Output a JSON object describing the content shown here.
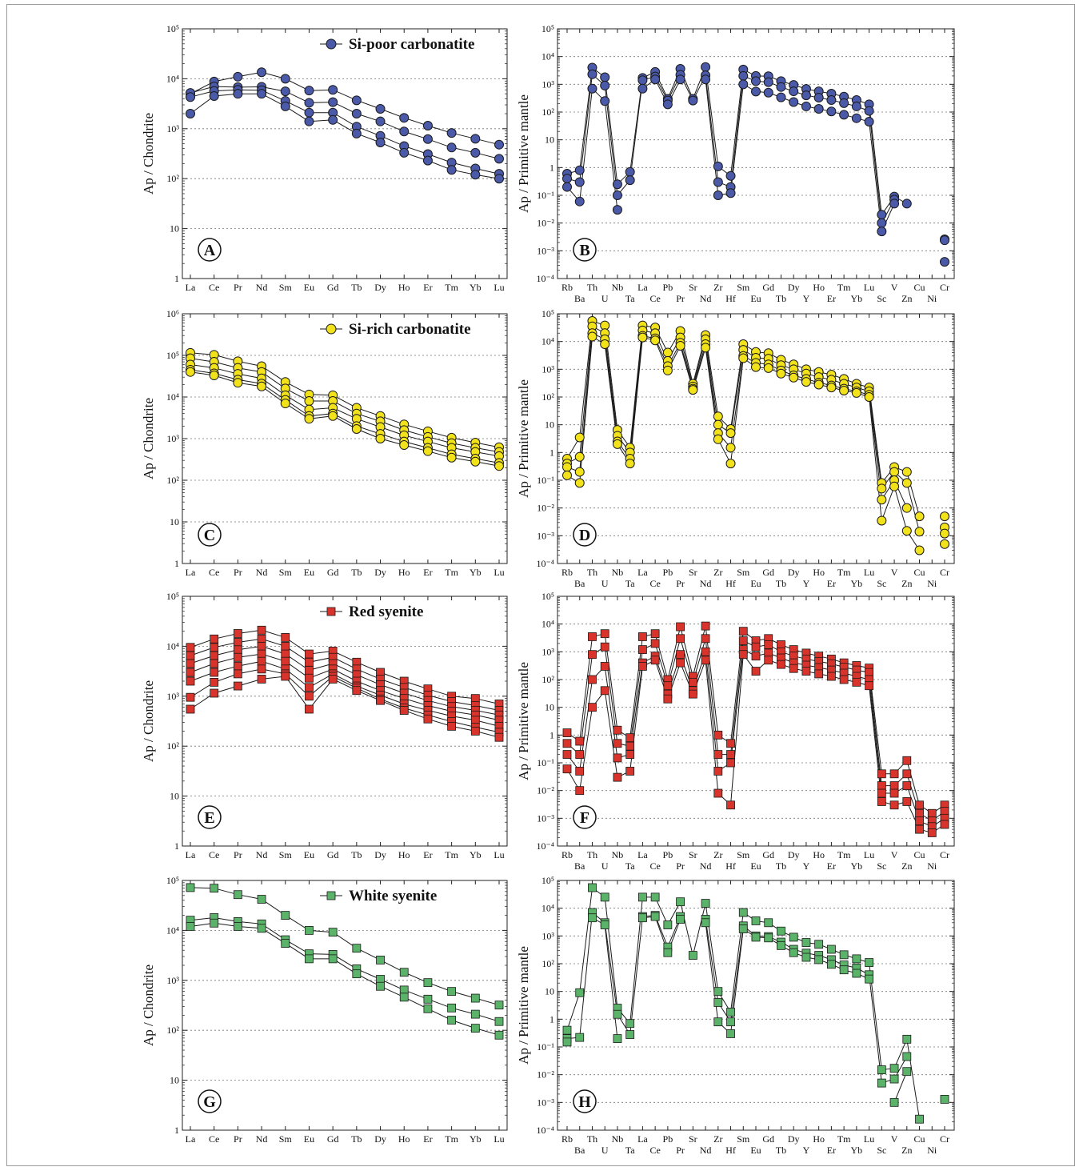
{
  "figure": {
    "ree_labels": [
      "La",
      "Ce",
      "Pr",
      "Nd",
      "Sm",
      "Eu",
      "Gd",
      "Tb",
      "Dy",
      "Ho",
      "Er",
      "Tm",
      "Yb",
      "Lu"
    ],
    "spider_labels": [
      "Rb",
      "Ba",
      "Th",
      "U",
      "Nb",
      "Ta",
      "La",
      "Ce",
      "Pb",
      "Pr",
      "Sr",
      "Nd",
      "Zr",
      "Hf",
      "Sm",
      "Eu",
      "Gd",
      "Tb",
      "Dy",
      "Y",
      "Ho",
      "Er",
      "Tm",
      "Yb",
      "Lu",
      "Sc",
      "V",
      "Zn",
      "Cu",
      "Ni",
      "Cr"
    ],
    "ylabel_chondrite": "Ap / Chondrite",
    "ylabel_mantle": "Ap / Primitive mantle"
  },
  "chart_data": [
    {
      "panel": "A",
      "type": "line",
      "legend": "Si-poor carbonatite",
      "marker": "circle",
      "color": "#4a5aa8",
      "ylim_exp": [
        0,
        5
      ],
      "ylabel": "Ap / Chondrite",
      "categories": [
        "La",
        "Ce",
        "Pr",
        "Nd",
        "Sm",
        "Eu",
        "Gd",
        "Tb",
        "Dy",
        "Ho",
        "Er",
        "Tm",
        "Yb",
        "Lu"
      ],
      "series": [
        {
          "values": [
            5000,
            8800,
            11000,
            13500,
            10000,
            5800,
            6000,
            3700,
            2500,
            1650,
            1150,
            820,
            630,
            480
          ]
        },
        {
          "values": [
            5200,
            7000,
            6800,
            6900,
            5600,
            3300,
            3400,
            2000,
            1400,
            880,
            620,
            420,
            330,
            250
          ]
        },
        {
          "values": [
            4300,
            5700,
            6000,
            5900,
            3600,
            2100,
            2100,
            1100,
            720,
            450,
            310,
            210,
            160,
            125
          ]
        },
        {
          "values": [
            2000,
            4500,
            5000,
            5000,
            2800,
            1400,
            1500,
            800,
            530,
            330,
            230,
            150,
            120,
            100
          ]
        }
      ]
    },
    {
      "panel": "B",
      "type": "line",
      "legend": "",
      "marker": "circle",
      "color": "#4a5aa8",
      "ylim_exp": [
        -4,
        5
      ],
      "ylabel": "Ap / Primitive mantle",
      "categories": [
        "Rb",
        "Ba",
        "Th",
        "U",
        "Nb",
        "Ta",
        "La",
        "Ce",
        "Pb",
        "Pr",
        "Sr",
        "Nd",
        "Zr",
        "Hf",
        "Sm",
        "Eu",
        "Gd",
        "Tb",
        "Dy",
        "Y",
        "Ho",
        "Er",
        "Tm",
        "Yb",
        "Lu",
        "Sc",
        "V",
        "Zn",
        "Cu",
        "Ni",
        "Cr"
      ],
      "series": [
        {
          "values": [
            0.6,
            0.8,
            4000,
            1800,
            0.25,
            0.7,
            1700,
            2800,
            300,
            3600,
            300,
            4200,
            1.1,
            0.5,
            3400,
            2000,
            1950,
            1300,
            950,
            680,
            560,
            460,
            360,
            270,
            190,
            0.02,
            0.09,
            0.05,
            null,
            null,
            0.0026
          ]
        },
        {
          "values": [
            0.4,
            0.3,
            2300,
            900,
            0.1,
            0.35,
            1400,
            1900,
            260,
            2200,
            260,
            2100,
            0.3,
            0.2,
            2000,
            1300,
            1200,
            800,
            560,
            400,
            330,
            270,
            210,
            160,
            110,
            0.01,
            0.07,
            null,
            null,
            null,
            0.0024
          ]
        },
        {
          "values": [
            0.2,
            0.06,
            700,
            250,
            0.03,
            null,
            700,
            1500,
            190,
            1500,
            null,
            1500,
            0.1,
            0.12,
            1000,
            550,
            500,
            340,
            230,
            160,
            130,
            105,
            80,
            60,
            45,
            0.005,
            0.05,
            null,
            null,
            null,
            0.0004
          ]
        }
      ]
    },
    {
      "panel": "C",
      "type": "line",
      "legend": "Si-rich carbonatite",
      "marker": "circle",
      "color": "#f2e21b",
      "ylim_exp": [
        0,
        6
      ],
      "ylabel": "Ap / Chondrite",
      "categories": [
        "La",
        "Ce",
        "Pr",
        "Nd",
        "Sm",
        "Eu",
        "Gd",
        "Tb",
        "Dy",
        "Ho",
        "Er",
        "Tm",
        "Yb",
        "Lu"
      ],
      "series": [
        {
          "values": [
            115000,
            103000,
            72000,
            55000,
            23000,
            11500,
            11000,
            5500,
            3500,
            2200,
            1500,
            1050,
            800,
            620
          ]
        },
        {
          "values": [
            85000,
            70000,
            50000,
            40000,
            16000,
            8000,
            8000,
            4000,
            2600,
            1600,
            1100,
            780,
            600,
            480
          ]
        },
        {
          "values": [
            60000,
            50000,
            36000,
            28000,
            11000,
            5000,
            5500,
            3000,
            1900,
            1200,
            850,
            600,
            480,
            380
          ]
        },
        {
          "values": [
            45000,
            37000,
            26000,
            21000,
            8500,
            3500,
            4000,
            2000,
            1300,
            850,
            600,
            420,
            330,
            260
          ]
        },
        {
          "values": [
            40000,
            33000,
            22000,
            18000,
            7000,
            3000,
            3500,
            1700,
            1000,
            700,
            500,
            350,
            280,
            220
          ]
        }
      ]
    },
    {
      "panel": "D",
      "type": "line",
      "legend": "",
      "marker": "circle",
      "color": "#f2e21b",
      "ylim_exp": [
        -4,
        5
      ],
      "ylabel": "Ap / Primitive mantle",
      "categories": [
        "Rb",
        "Ba",
        "Th",
        "U",
        "Nb",
        "Ta",
        "La",
        "Ce",
        "Pb",
        "Pr",
        "Sr",
        "Nd",
        "Zr",
        "Hf",
        "Sm",
        "Eu",
        "Gd",
        "Tb",
        "Dy",
        "Y",
        "Ho",
        "Er",
        "Tm",
        "Yb",
        "Lu",
        "Sc",
        "V",
        "Zn",
        "Cu",
        "Ni",
        "Cr"
      ],
      "series": [
        {
          "values": [
            0.6,
            3.5,
            55000,
            38000,
            6.5,
            1.5,
            38000,
            32000,
            4000,
            24000,
            300,
            17000,
            20,
            7,
            8000,
            4200,
            3800,
            2200,
            1500,
            1000,
            800,
            640,
            450,
            300,
            220,
            0.08,
            0.3,
            0.2,
            0.005,
            null,
            0.005
          ]
        },
        {
          "values": [
            0.4,
            0.7,
            35000,
            20000,
            4.0,
            1.0,
            25000,
            20000,
            2000,
            14000,
            240,
            12000,
            10,
            5,
            5000,
            2600,
            2400,
            1400,
            1000,
            700,
            520,
            420,
            300,
            220,
            160,
            0.05,
            0.2,
            0.08,
            0.0014,
            null,
            0.002
          ]
        },
        {
          "values": [
            0.3,
            0.2,
            20000,
            12000,
            2.5,
            0.6,
            16000,
            13000,
            1300,
            9000,
            200,
            8000,
            5,
            1.5,
            3000,
            1700,
            1500,
            900,
            600,
            450,
            330,
            260,
            200,
            160,
            120,
            0.02,
            0.1,
            0.01,
            null,
            null,
            0.0012
          ]
        },
        {
          "values": [
            0.15,
            0.08,
            15000,
            8000,
            2.0,
            0.4,
            14000,
            11000,
            900,
            7000,
            180,
            6000,
            3,
            0.4,
            2500,
            1200,
            1100,
            700,
            500,
            350,
            280,
            220,
            170,
            140,
            100,
            0.0035,
            0.06,
            0.0015,
            0.0003,
            null,
            0.0005
          ]
        }
      ]
    },
    {
      "panel": "E",
      "type": "line",
      "legend": "Red syenite",
      "marker": "square",
      "color": "#d9342b",
      "ylim_exp": [
        0,
        5
      ],
      "ylabel": "Ap / Chondrite",
      "categories": [
        "La",
        "Ce",
        "Pr",
        "Nd",
        "Sm",
        "Eu",
        "Gd",
        "Tb",
        "Dy",
        "Ho",
        "Er",
        "Tm",
        "Yb",
        "Lu"
      ],
      "series": [
        {
          "values": [
            9500,
            14000,
            18000,
            21000,
            15000,
            7000,
            8000,
            4800,
            3000,
            2000,
            1400,
            1000,
            900,
            700
          ]
        },
        {
          "values": [
            6500,
            9500,
            12000,
            14000,
            10000,
            4800,
            6000,
            3500,
            2200,
            1500,
            1050,
            780,
            650,
            520
          ]
        },
        {
          "values": [
            4500,
            6500,
            8500,
            10000,
            7000,
            3300,
            4500,
            2700,
            1700,
            1150,
            820,
            620,
            520,
            420
          ]
        },
        {
          "values": [
            3000,
            4500,
            6000,
            7000,
            5000,
            2300,
            3500,
            2000,
            1300,
            900,
            650,
            500,
            420,
            330
          ]
        },
        {
          "values": [
            2000,
            3000,
            4000,
            5000,
            3500,
            1500,
            2800,
            1600,
            1050,
            700,
            520,
            400,
            330,
            250
          ]
        },
        {
          "values": [
            950,
            1900,
            2800,
            3500,
            2800,
            1000,
            2500,
            1450,
            880,
            580,
            420,
            310,
            240,
            190
          ]
        },
        {
          "values": [
            550,
            1150,
            1600,
            2200,
            2500,
            550,
            2200,
            1300,
            820,
            520,
            350,
            250,
            200,
            150
          ]
        }
      ]
    },
    {
      "panel": "F",
      "type": "line",
      "legend": "",
      "marker": "square",
      "color": "#d9342b",
      "ylim_exp": [
        -4,
        5
      ],
      "ylabel": "Ap / Primitive mantle",
      "categories": [
        "Rb",
        "Ba",
        "Th",
        "U",
        "Nb",
        "Ta",
        "La",
        "Ce",
        "Pb",
        "Pr",
        "Sr",
        "Nd",
        "Zr",
        "Hf",
        "Sm",
        "Eu",
        "Gd",
        "Tb",
        "Dy",
        "Y",
        "Ho",
        "Er",
        "Tm",
        "Yb",
        "Lu",
        "Sc",
        "V",
        "Zn",
        "Cu",
        "Ni",
        "Cr"
      ],
      "series": [
        {
          "values": [
            1.2,
            0.6,
            3500,
            4500,
            1.5,
            0.8,
            3500,
            4500,
            100,
            8000,
            130,
            8500,
            1,
            0.5,
            5500,
            2500,
            3000,
            1800,
            1200,
            900,
            700,
            550,
            400,
            320,
            260,
            0.04,
            0.04,
            0.12,
            0.003,
            0.0015,
            0.003
          ]
        },
        {
          "values": [
            0.5,
            0.2,
            800,
            1500,
            0.5,
            0.4,
            1200,
            2000,
            60,
            3000,
            80,
            3000,
            0.2,
            0.2,
            2500,
            1500,
            1800,
            1000,
            700,
            550,
            450,
            370,
            280,
            220,
            180,
            0.015,
            0.015,
            0.04,
            0.0015,
            0.0008,
            0.0018
          ]
        },
        {
          "values": [
            0.2,
            0.05,
            100,
            300,
            0.15,
            0.2,
            400,
            700,
            30,
            800,
            40,
            1000,
            0.05,
            0.1,
            1200,
            700,
            900,
            600,
            400,
            330,
            270,
            220,
            170,
            130,
            100,
            0.008,
            0.008,
            0.015,
            0.0008,
            0.0005,
            0.001
          ]
        },
        {
          "values": [
            0.06,
            0.01,
            10,
            40,
            0.03,
            0.05,
            300,
            500,
            20,
            400,
            30,
            500,
            0.008,
            0.003,
            800,
            200,
            500,
            350,
            250,
            200,
            160,
            130,
            100,
            80,
            60,
            0.004,
            0.003,
            0.004,
            0.0004,
            0.0003,
            0.0006
          ]
        }
      ]
    },
    {
      "panel": "G",
      "type": "line",
      "legend": "White syenite",
      "marker": "square",
      "color": "#5bb36a",
      "ylim_exp": [
        0,
        5
      ],
      "ylabel": "Ap / Chondrite",
      "categories": [
        "La",
        "Ce",
        "Pr",
        "Nd",
        "Sm",
        "Eu",
        "Gd",
        "Tb",
        "Dy",
        "Ho",
        "Er",
        "Tm",
        "Yb",
        "Lu"
      ],
      "series": [
        {
          "values": [
            72000,
            70000,
            52000,
            42000,
            20000,
            10000,
            9200,
            4400,
            2550,
            1450,
            900,
            600,
            440,
            320
          ]
        },
        {
          "values": [
            16000,
            18000,
            15000,
            13500,
            6500,
            3400,
            3300,
            1700,
            1050,
            640,
            420,
            280,
            210,
            150
          ]
        },
        {
          "values": [
            12000,
            14000,
            12000,
            11000,
            5500,
            2700,
            2700,
            1350,
            760,
            460,
            270,
            160,
            110,
            80
          ]
        }
      ]
    },
    {
      "panel": "H",
      "type": "line",
      "legend": "",
      "marker": "square",
      "color": "#5bb36a",
      "ylim_exp": [
        -4,
        5
      ],
      "ylabel": "Ap / Primitive mantle",
      "categories": [
        "Rb",
        "Ba",
        "Th",
        "U",
        "Nb",
        "Ta",
        "La",
        "Ce",
        "Pb",
        "Pr",
        "Sr",
        "Nd",
        "Zr",
        "Hf",
        "Sm",
        "Eu",
        "Gd",
        "Tb",
        "Dy",
        "Y",
        "Ho",
        "Er",
        "Tm",
        "Yb",
        "Lu",
        "Sc",
        "V",
        "Zn",
        "Cu",
        "Ni",
        "Cr"
      ],
      "series": [
        {
          "values": [
            0.4,
            9,
            55000,
            25000,
            2.5,
            0.7,
            25000,
            25000,
            2500,
            17000,
            200,
            15000,
            10,
            1.8,
            7000,
            3500,
            3000,
            1500,
            900,
            580,
            500,
            330,
            210,
            150,
            110,
            0.015,
            0.017,
            0.19,
            0.00025,
            null,
            0.0013
          ]
        },
        {
          "values": [
            0.2,
            0.22,
            7000,
            3000,
            1.5,
            0.28,
            5000,
            5500,
            400,
            5000,
            null,
            4000,
            4,
            0.8,
            2300,
            1000,
            950,
            600,
            330,
            240,
            200,
            140,
            90,
            70,
            40,
            0.005,
            0.007,
            0.045,
            null,
            null,
            null
          ]
        },
        {
          "values": [
            0.15,
            null,
            4500,
            2500,
            0.2,
            null,
            4500,
            5000,
            250,
            4000,
            null,
            3000,
            0.8,
            0.3,
            1800,
            900,
            850,
            450,
            250,
            170,
            140,
            95,
            60,
            45,
            28,
            null,
            0.001,
            0.013,
            null,
            null,
            null
          ]
        }
      ]
    }
  ]
}
